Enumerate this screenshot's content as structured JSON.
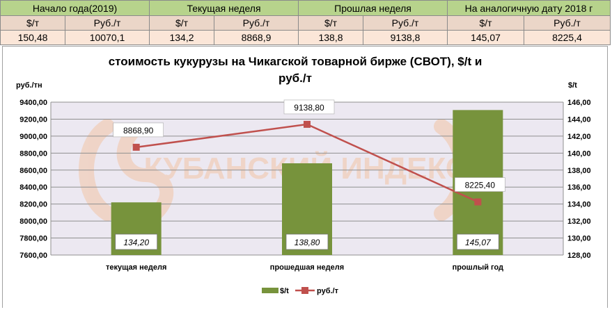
{
  "price_table": {
    "groups": [
      "Начало года(2019)",
      "Текущая неделя",
      "Прошлая неделя",
      "На аналогичную дату 2018 г"
    ],
    "units": [
      "$/т",
      "Руб./т",
      "$/т",
      "Руб./т",
      "$/т",
      "Руб./т",
      "$/т",
      "Руб./т"
    ],
    "values": [
      "150,48",
      "10070,1",
      "134,2",
      "8868,9",
      "138,8",
      "9138,8",
      "145,07",
      "8225,4"
    ]
  },
  "watermark": "КУБАНСКИЙ ИНДЕКС",
  "colors": {
    "bar": "#77933c",
    "line": "#c0504d",
    "plot_bg": "#ece8f1",
    "header_green": "#b7d38c",
    "header_beige": "#ebd6c8",
    "value_row": "#fbe6d8",
    "watermark": "#f2c4a6"
  },
  "chart_data": {
    "type": "bar+line",
    "title": "стоимость кукурузы на Чикагской товарной бирже (СВОТ), $/t и руб./т",
    "title_lines": [
      "стоимость кукурузы на Чикагской товарной бирже (СВОТ), $/t и",
      "руб./т"
    ],
    "categories": [
      "текущая неделя",
      "прошедшая неделя",
      "прошлый год"
    ],
    "left_axis_label": "руб./тн",
    "right_axis_label": "$/t",
    "ylim_left": [
      7600,
      9400
    ],
    "ylim_right": [
      128,
      146
    ],
    "ticks_left": [
      "7600,00",
      "7800,00",
      "8000,00",
      "8200,00",
      "8400,00",
      "8600,00",
      "8800,00",
      "9000,00",
      "9200,00",
      "9400,00"
    ],
    "ticks_right": [
      "128,00",
      "130,00",
      "132,00",
      "134,00",
      "136,00",
      "138,00",
      "140,00",
      "142,00",
      "144,00",
      "146,00"
    ],
    "grid": true,
    "legend_position": "bottom",
    "series": [
      {
        "name": "$/t",
        "type": "bar",
        "axis": "right",
        "values": [
          134.2,
          138.8,
          145.07
        ],
        "labels": [
          "134,20",
          "138,80",
          "145,07"
        ]
      },
      {
        "name": "руб./т",
        "type": "line",
        "axis": "left",
        "values": [
          8868.9,
          9138.8,
          8225.4
        ],
        "labels": [
          "8868,90",
          "9138,80",
          "8225,40"
        ]
      }
    ]
  }
}
